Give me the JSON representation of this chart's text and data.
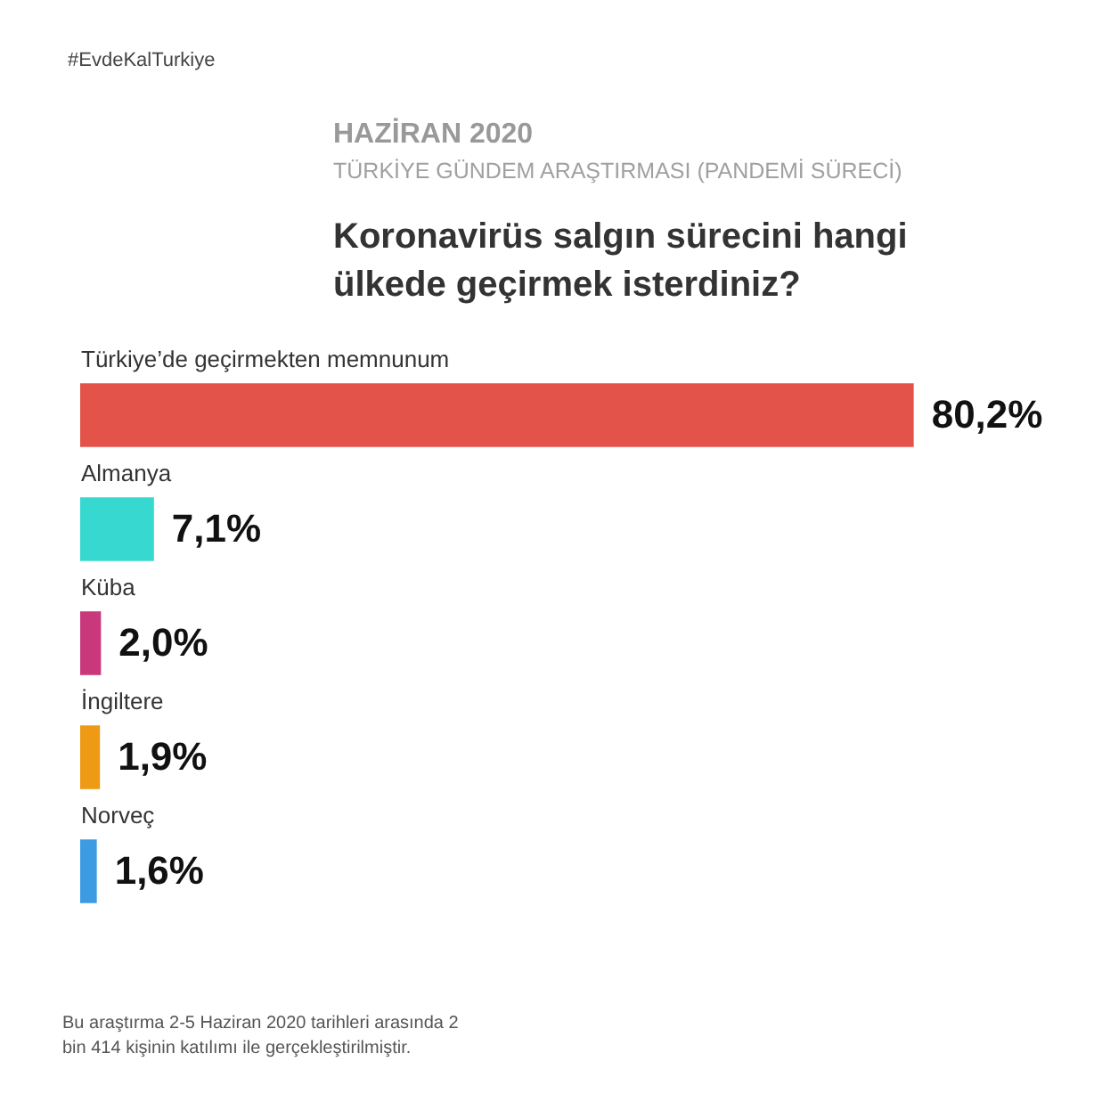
{
  "chart_data": {
    "type": "bar",
    "orientation": "horizontal",
    "title": "Koronavirüs salgın sürecini hangi ülkede geçirmek isterdiniz?",
    "subtitle": "TÜRKİYE GÜNDEM ARAŞTIRMASI (PANDEMİ SÜRECİ)",
    "categories": [
      "Türkiye’de geçirmekten memnunum",
      "Almanya",
      "Küba",
      "İngiltere",
      "Norveç"
    ],
    "values": [
      80.2,
      7.1,
      2.0,
      1.9,
      1.6
    ],
    "colors": [
      "#e4534a",
      "#36d8d0",
      "#c8387a",
      "#ee9a14",
      "#3d9be3"
    ],
    "value_labels": [
      "80,2%",
      "7,1%",
      "2,0%",
      "1,9%",
      "1,6%"
    ],
    "tick_labels": "y",
    "annotations": [
      "#EvdeKalTurkiye",
      "HAZİRAN 2020",
      "Bu araştırma 2-5 Haziran 2020 tarihleri arasında 2 bin 414 kişinin katılımı ile gerçekleştirilmiştir."
    ]
  }
}
